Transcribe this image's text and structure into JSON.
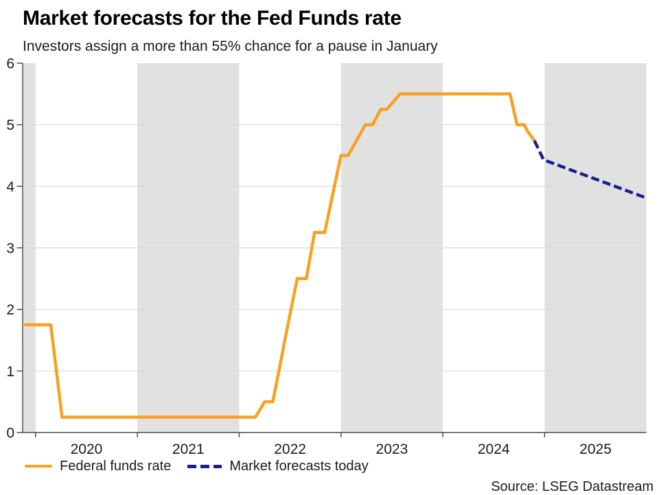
{
  "chart_data": {
    "type": "line",
    "title": "Market forecasts for the Fed Funds rate",
    "subtitle": "Investors assign a more than 55% chance for a pause in January",
    "source": "Source: LSEG Datastream",
    "xlabel": "",
    "ylabel": "",
    "xlim": [
      2019.88,
      2026.0
    ],
    "ylim": [
      0,
      6
    ],
    "x_tick_marks": [
      2020,
      2021,
      2022,
      2023,
      2024,
      2025
    ],
    "x_tick_labels": [
      "2020",
      "2021",
      "2022",
      "2023",
      "2024",
      "2025"
    ],
    "y_ticks": [
      0,
      1,
      2,
      3,
      4,
      5,
      6
    ],
    "y_grid": [
      1,
      2,
      3,
      4,
      5
    ],
    "shaded_bands": [
      [
        2019.88,
        2020.0
      ],
      [
        2021.0,
        2022.0
      ],
      [
        2023.0,
        2024.0
      ],
      [
        2025.0,
        2026.0
      ]
    ],
    "grid_on": true,
    "legend_position": "bottom-left",
    "colors": {
      "band": "#E1E1E1",
      "grid": "#D8D8D8",
      "axis": "#4D4D4D",
      "tick_text": "#1A1A1A",
      "fed_funds": "#F9A11F",
      "forecast": "#1A1E8E"
    },
    "series": [
      {
        "name": "Federal funds rate",
        "color": "#F9A11F",
        "style": "solid",
        "points": [
          [
            2019.9,
            1.75
          ],
          [
            2020.15,
            1.75
          ],
          [
            2020.26,
            0.25
          ],
          [
            2022.16,
            0.25
          ],
          [
            2022.25,
            0.5
          ],
          [
            2022.33,
            0.5
          ],
          [
            2022.39,
            1.0
          ],
          [
            2022.46,
            1.6
          ],
          [
            2022.57,
            2.5
          ],
          [
            2022.66,
            2.5
          ],
          [
            2022.74,
            3.25
          ],
          [
            2022.84,
            3.25
          ],
          [
            2023.0,
            4.5
          ],
          [
            2023.07,
            4.5
          ],
          [
            2023.24,
            5.0
          ],
          [
            2023.31,
            5.0
          ],
          [
            2023.39,
            5.25
          ],
          [
            2023.45,
            5.25
          ],
          [
            2023.58,
            5.5
          ],
          [
            2024.66,
            5.5
          ],
          [
            2024.73,
            5.0
          ],
          [
            2024.8,
            5.0
          ],
          [
            2024.83,
            4.9
          ],
          [
            2024.9,
            4.74
          ]
        ]
      },
      {
        "name": "Market forecasts today",
        "color": "#1A1E8E",
        "style": "dashed",
        "points": [
          [
            2024.9,
            4.74
          ],
          [
            2024.99,
            4.43
          ],
          [
            2026.0,
            3.81
          ]
        ]
      }
    ]
  }
}
